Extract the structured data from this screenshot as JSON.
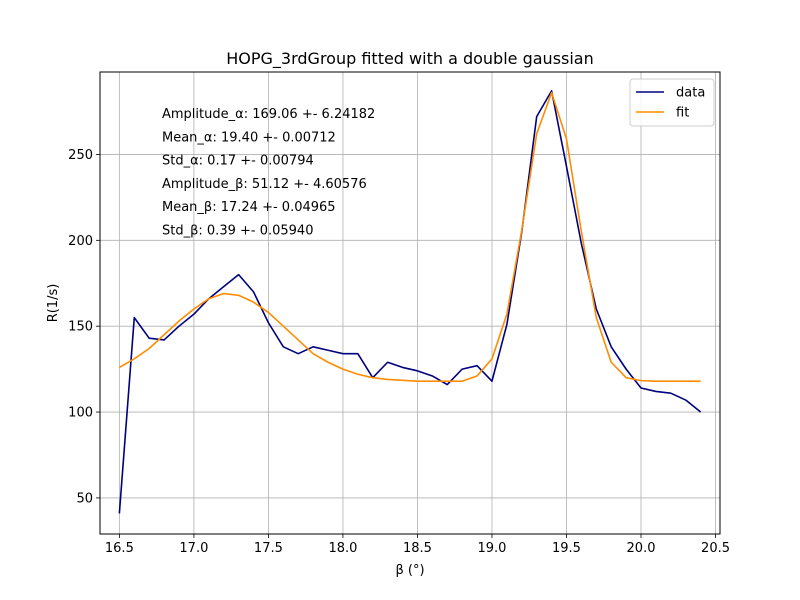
{
  "chart_data": {
    "type": "line",
    "title": "HOPG_3rdGroup fitted with a double gaussian",
    "xlabel": "β (°)",
    "ylabel": "R(1/s)",
    "xlim": [
      16.37,
      20.53
    ],
    "ylim": [
      29,
      298
    ],
    "xticks": [
      16.5,
      17.0,
      17.5,
      18.0,
      18.5,
      19.0,
      19.5,
      20.0,
      20.5
    ],
    "xtick_labels": [
      "16.5",
      "17.0",
      "17.5",
      "18.0",
      "18.5",
      "19.0",
      "19.5",
      "20.0",
      "20.5"
    ],
    "yticks": [
      50,
      100,
      150,
      200,
      250
    ],
    "ytick_labels": [
      "50",
      "100",
      "150",
      "200",
      "250"
    ],
    "grid": true,
    "legend_position": "top-right",
    "annotations": [
      "Amplitude_α: 169.06 +- 6.24182",
      "Mean_α: 19.40 +- 0.00712",
      "Std_α: 0.17 +- 0.00794",
      "Amplitude_β: 51.12 +- 4.60576",
      "Mean_β: 17.24 +- 0.04965",
      "Std_β: 0.39 +- 0.05940"
    ],
    "x": [
      16.5,
      16.6,
      16.7,
      16.8,
      16.9,
      17.0,
      17.1,
      17.2,
      17.3,
      17.4,
      17.5,
      17.6,
      17.7,
      17.8,
      17.9,
      18.0,
      18.1,
      18.2,
      18.3,
      18.4,
      18.5,
      18.6,
      18.7,
      18.8,
      18.9,
      19.0,
      19.1,
      19.2,
      19.3,
      19.4,
      19.5,
      19.6,
      19.7,
      19.8,
      19.9,
      20.0,
      20.1,
      20.2,
      20.3,
      20.4
    ],
    "series": [
      {
        "name": "data",
        "color": "#00007f",
        "values": [
          41,
          155,
          143,
          142,
          150,
          157,
          166,
          173,
          180,
          170,
          152,
          138,
          134,
          138,
          136,
          134,
          134,
          120,
          129,
          126,
          124,
          121,
          116,
          125,
          127,
          118,
          151,
          205,
          272,
          287,
          243,
          198,
          160,
          138,
          125,
          114,
          112,
          111,
          107,
          100
        ]
      },
      {
        "name": "fit",
        "color": "#ff8c00",
        "values": [
          126,
          131,
          137,
          145,
          153,
          160,
          166,
          169,
          168,
          164,
          158,
          150,
          142,
          134,
          129,
          125,
          122,
          120,
          119,
          118.5,
          118,
          118,
          118,
          118,
          121,
          131,
          157,
          206,
          262,
          286,
          259,
          205,
          155,
          129,
          120,
          118.3,
          118,
          118,
          118,
          118
        ]
      }
    ]
  }
}
